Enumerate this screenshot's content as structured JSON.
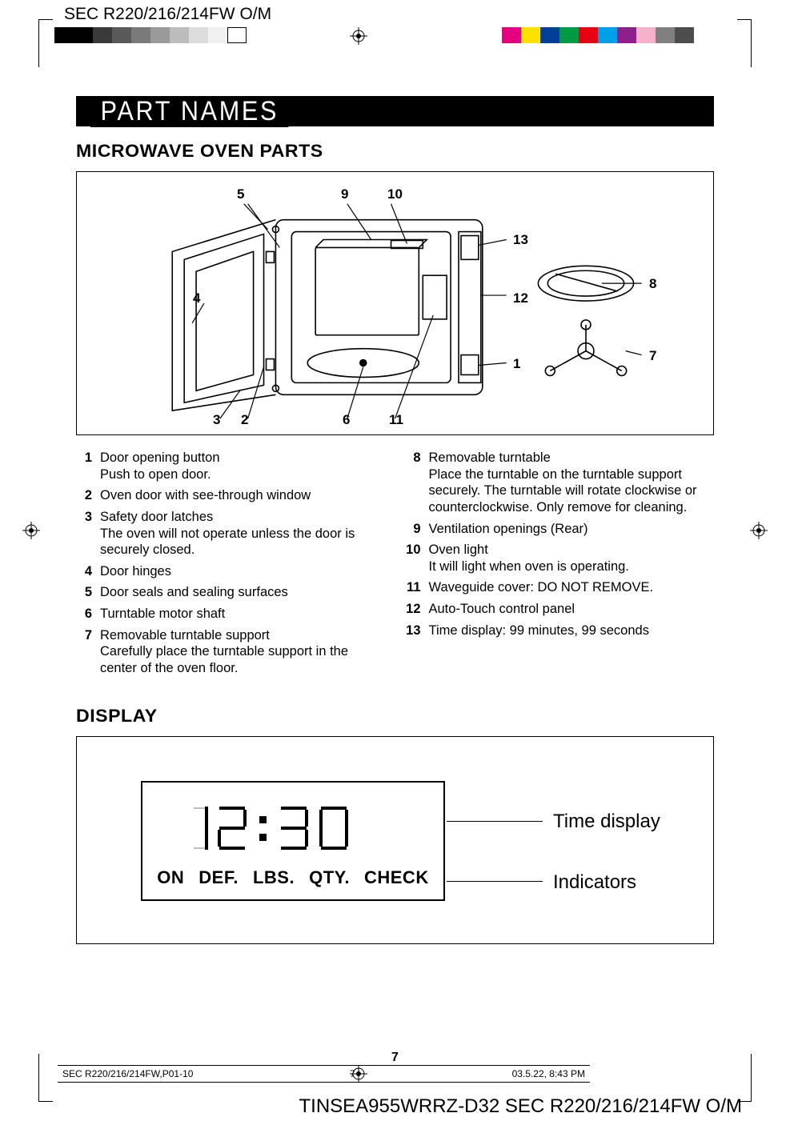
{
  "header_text": "SEC R220/216/214FW O/M",
  "footer_text": "TINSEA955WRRZ-D32 SEC R220/216/214FW O/M",
  "colorbar_left": [
    "#000000",
    "#000000",
    "#3a3a3a",
    "#5a5a5a",
    "#7a7a7a",
    "#9a9a9a",
    "#bcbcbc",
    "#dcdcdc",
    "#f0f0f0",
    "#ffffff"
  ],
  "colorbar_right": [
    "#e4007f",
    "#ffe100",
    "#003f98",
    "#009944",
    "#e60012",
    "#00a0e9",
    "#8e1f8c",
    "#f7b2cb",
    "#808080",
    "#4d4d4d"
  ],
  "section_title": "PART NAMES",
  "subheading1": "MICROWAVE OVEN PARTS",
  "subheading2": "DISPLAY",
  "callouts": {
    "n1": "1",
    "n2": "2",
    "n3": "3",
    "n4": "4",
    "n5": "5",
    "n6": "6",
    "n7": "7",
    "n8": "8",
    "n9": "9",
    "n10": "10",
    "n11": "11",
    "n12": "12",
    "n13": "13"
  },
  "parts_left": [
    {
      "num": "1",
      "title": "Door opening button",
      "desc": "Push to open door."
    },
    {
      "num": "2",
      "title": "Oven door with see-through window",
      "desc": ""
    },
    {
      "num": "3",
      "title": "Safety door latches",
      "desc": "The oven will not operate unless the door is securely closed."
    },
    {
      "num": "4",
      "title": "Door hinges",
      "desc": ""
    },
    {
      "num": "5",
      "title": "Door seals and sealing surfaces",
      "desc": ""
    },
    {
      "num": "6",
      "title": "Turntable motor shaft",
      "desc": ""
    },
    {
      "num": "7",
      "title": "Removable turntable support",
      "desc": "Carefully place the turntable support in the center of the oven floor."
    }
  ],
  "parts_right": [
    {
      "num": "8",
      "title": "Removable turntable",
      "desc": "Place the turntable on the turntable support securely. The turntable will rotate clockwise or counterclockwise. Only remove for cleaning."
    },
    {
      "num": "9",
      "title": "Ventilation openings (Rear)",
      "desc": ""
    },
    {
      "num": "10",
      "title": "Oven light",
      "desc": "It will light when oven is operating."
    },
    {
      "num": "11",
      "title": "Waveguide cover: DO NOT REMOVE.",
      "desc": ""
    },
    {
      "num": "12",
      "title": "Auto-Touch control panel",
      "desc": ""
    },
    {
      "num": "13",
      "title": "Time display: 99 minutes, 99 seconds",
      "desc": ""
    }
  ],
  "display": {
    "time": "12 : 30",
    "indicators": [
      "ON",
      "DEF.",
      "LBS.",
      "QTY.",
      "CHECK"
    ],
    "label_time": "Time display",
    "label_ind": "Indicators"
  },
  "page_number": "7",
  "footer_strip": {
    "left": "SEC R220/216/214FW,P01-10",
    "mid": "7",
    "right": "03.5.22, 8:43 PM"
  }
}
